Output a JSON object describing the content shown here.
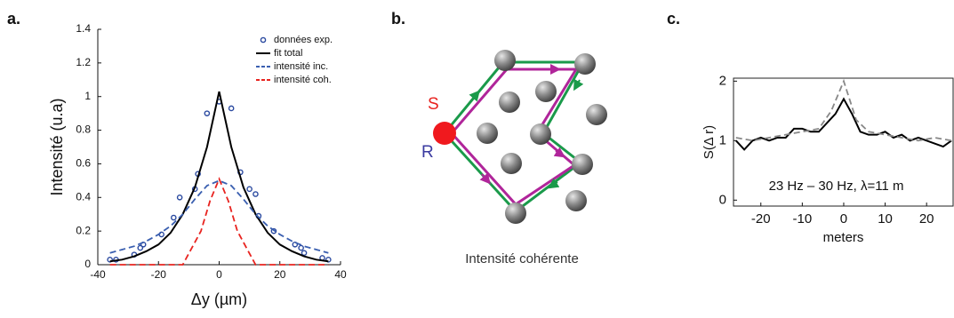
{
  "panel_labels": [
    "a.",
    "b.",
    "c."
  ],
  "chart_data": [
    {
      "type": "line",
      "xlabel": "Δy (µm)",
      "ylabel": "Intensité (u.a)",
      "xlim": [
        -40,
        40
      ],
      "xticks": [
        -40,
        -20,
        0,
        20,
        40
      ],
      "ylim": [
        0,
        1.4
      ],
      "yticks": [
        0,
        0.2,
        0.4,
        0.6,
        0.8,
        1,
        1.2,
        1.4
      ],
      "legend": "upper right",
      "series": [
        {
          "name": "données exp.",
          "color": "#2b4aa0",
          "style": "markers",
          "x": [
            -36,
            -34,
            -28,
            -26,
            -25,
            -19,
            -15,
            -13,
            -8,
            -7,
            -4,
            0,
            4,
            7,
            10,
            12,
            13,
            18,
            25,
            27,
            28,
            34,
            36
          ],
          "values": [
            0.03,
            0.03,
            0.06,
            0.1,
            0.12,
            0.18,
            0.28,
            0.4,
            0.45,
            0.54,
            0.9,
            0.97,
            0.93,
            0.55,
            0.45,
            0.42,
            0.29,
            0.2,
            0.12,
            0.1,
            0.07,
            0.04,
            0.03
          ]
        },
        {
          "name": "fit total",
          "color": "#000000",
          "style": "solid",
          "x": [
            -36,
            -32,
            -28,
            -24,
            -20,
            -16,
            -12,
            -8,
            -4,
            0,
            4,
            8,
            12,
            16,
            20,
            24,
            28,
            32,
            36
          ],
          "values": [
            0.02,
            0.03,
            0.05,
            0.08,
            0.12,
            0.19,
            0.3,
            0.46,
            0.7,
            1.03,
            0.7,
            0.46,
            0.3,
            0.19,
            0.12,
            0.08,
            0.05,
            0.03,
            0.02
          ]
        },
        {
          "name": "intensité inc.",
          "color": "#3a5fb0",
          "style": "dashed",
          "x": [
            -36,
            -32,
            -28,
            -24,
            -20,
            -16,
            -12,
            -8,
            -4,
            0,
            4,
            8,
            12,
            16,
            20,
            24,
            28,
            32,
            36
          ],
          "values": [
            0.07,
            0.09,
            0.11,
            0.14,
            0.18,
            0.23,
            0.3,
            0.39,
            0.47,
            0.5,
            0.47,
            0.39,
            0.3,
            0.23,
            0.18,
            0.14,
            0.11,
            0.09,
            0.07
          ]
        },
        {
          "name": "intensité coh.",
          "color": "#e8231f",
          "style": "dashed",
          "x": [
            -36,
            -12,
            -6,
            -3,
            0,
            3,
            6,
            12,
            36
          ],
          "values": [
            0,
            0,
            0.2,
            0.38,
            0.51,
            0.38,
            0.2,
            0,
            0
          ]
        }
      ]
    },
    {
      "type": "line",
      "xlabel": "meters",
      "ylabel": "S(Δ r)",
      "annotation": "23 Hz – 30 Hz, λ=11 m",
      "xlim": [
        -26.6,
        26.4
      ],
      "xticks": [
        -20,
        -10,
        0,
        10,
        20
      ],
      "ylim": [
        -0.1,
        2.05
      ],
      "yticks": [
        0,
        1,
        2
      ],
      "legend": false,
      "series": [
        {
          "color": "#000000",
          "style": "solid",
          "x": [
            -26,
            -24,
            -22,
            -20,
            -18,
            -16,
            -14,
            -12,
            -10,
            -8,
            -6,
            -4,
            -2,
            0,
            2,
            4,
            6,
            8,
            10,
            12,
            14,
            16,
            18,
            20,
            22,
            24,
            26
          ],
          "values": [
            1.0,
            0.85,
            1.0,
            1.05,
            1.0,
            1.05,
            1.05,
            1.2,
            1.2,
            1.15,
            1.15,
            1.3,
            1.45,
            1.7,
            1.45,
            1.15,
            1.1,
            1.1,
            1.15,
            1.05,
            1.1,
            1.0,
            1.05,
            1.0,
            0.95,
            0.9,
            1.0
          ]
        },
        {
          "color": "#888888",
          "style": "dashed",
          "x": [
            -26,
            -22,
            -18,
            -14,
            -10,
            -6,
            -3,
            0,
            3,
            6,
            10,
            14,
            18,
            22,
            26
          ],
          "values": [
            1.05,
            1.0,
            1.05,
            1.1,
            1.15,
            1.2,
            1.5,
            2.0,
            1.35,
            1.15,
            1.1,
            1.05,
            1.0,
            1.05,
            1.0
          ]
        }
      ]
    }
  ],
  "diagram": {
    "source_label": "S",
    "receiver_label": "R",
    "caption": "Intensité cohérente"
  }
}
